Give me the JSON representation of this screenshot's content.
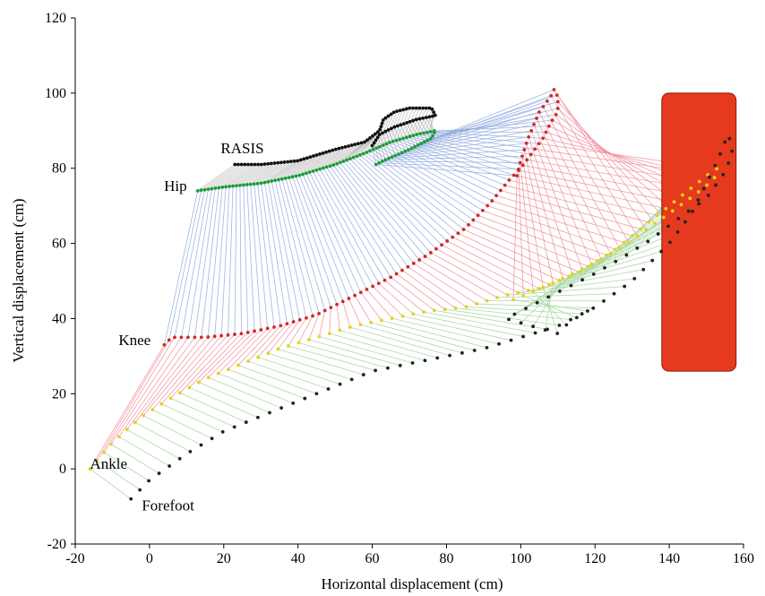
{
  "chart_data": {
    "type": "scatter",
    "title": "",
    "xlabel": "Horizontal displacement (cm)",
    "ylabel": "Vertical displacement (cm)",
    "xlim": [
      -20,
      160
    ],
    "ylim": [
      -20,
      120
    ],
    "xticks": [
      -20,
      0,
      20,
      40,
      60,
      80,
      100,
      120,
      140,
      160
    ],
    "yticks": [
      -20,
      0,
      20,
      40,
      60,
      80,
      100,
      120
    ],
    "grid": false,
    "annotations": [
      {
        "label": "RASIS",
        "x": 25,
        "y": 84
      },
      {
        "label": "Hip",
        "x": 7,
        "y": 74
      },
      {
        "label": "Knee",
        "x": -4,
        "y": 33
      },
      {
        "label": "Ankle",
        "x": -11,
        "y": 0
      },
      {
        "label": "Forefoot",
        "x": 5,
        "y": -11
      }
    ],
    "obstacle": {
      "x0": 138,
      "x1": 158,
      "y0": 26,
      "y1": 100,
      "color": "#e53a1e"
    },
    "series": [
      {
        "name": "RASIS",
        "color": "#111111",
        "points": [
          [
            23,
            81
          ],
          [
            30,
            81
          ],
          [
            40,
            82
          ],
          [
            50,
            85
          ],
          [
            58,
            87
          ],
          [
            62,
            90
          ],
          [
            63,
            93
          ],
          [
            66,
            95
          ],
          [
            70,
            96
          ],
          [
            76,
            96
          ],
          [
            77,
            94
          ],
          [
            72,
            93
          ],
          [
            66,
            91
          ],
          [
            62,
            89
          ],
          [
            60,
            86
          ]
        ]
      },
      {
        "name": "Hip",
        "color": "#1e9b3c",
        "points": [
          [
            13,
            74
          ],
          [
            20,
            75
          ],
          [
            30,
            76
          ],
          [
            40,
            78
          ],
          [
            50,
            81
          ],
          [
            58,
            84
          ],
          [
            65,
            87
          ],
          [
            72,
            89
          ],
          [
            77,
            90
          ],
          [
            76,
            88
          ],
          [
            70,
            85
          ],
          [
            63,
            82
          ],
          [
            61,
            81
          ]
        ]
      },
      {
        "name": "Knee",
        "color": "#d62728",
        "points": [
          [
            4,
            33
          ],
          [
            6,
            35
          ],
          [
            15,
            35
          ],
          [
            25,
            36
          ],
          [
            35,
            38
          ],
          [
            45,
            41
          ],
          [
            55,
            46
          ],
          [
            65,
            51
          ],
          [
            75,
            57
          ],
          [
            85,
            64
          ],
          [
            92,
            71
          ],
          [
            97,
            77
          ],
          [
            100,
            80
          ],
          [
            103,
            84
          ],
          [
            106,
            88
          ],
          [
            108,
            92
          ],
          [
            110,
            95
          ],
          [
            110,
            99
          ],
          [
            109,
            101
          ],
          [
            108,
            99
          ],
          [
            105,
            95
          ],
          [
            102,
            88
          ],
          [
            100,
            82
          ],
          [
            99,
            78
          ]
        ]
      },
      {
        "name": "Ankle",
        "color": "#e6d21f",
        "points": [
          [
            -16,
            0
          ],
          [
            -10,
            7
          ],
          [
            -2,
            14
          ],
          [
            6,
            19
          ],
          [
            15,
            24
          ],
          [
            25,
            28
          ],
          [
            35,
            32
          ],
          [
            45,
            35
          ],
          [
            55,
            38
          ],
          [
            65,
            40
          ],
          [
            75,
            42
          ],
          [
            85,
            43
          ],
          [
            95,
            46
          ],
          [
            105,
            48
          ],
          [
            115,
            52
          ],
          [
            125,
            58
          ],
          [
            135,
            66
          ],
          [
            145,
            74
          ],
          [
            150,
            78
          ],
          [
            153,
            80
          ],
          [
            152,
            77
          ],
          [
            147,
            73
          ],
          [
            140,
            68
          ],
          [
            133,
            63
          ],
          [
            126,
            58
          ],
          [
            118,
            54
          ],
          [
            110,
            50
          ],
          [
            103,
            47
          ],
          [
            98,
            45
          ]
        ]
      },
      {
        "name": "Forefoot",
        "color": "#222222",
        "points": [
          [
            -5,
            -8
          ],
          [
            0,
            -3
          ],
          [
            10,
            4
          ],
          [
            20,
            10
          ],
          [
            30,
            14
          ],
          [
            40,
            18
          ],
          [
            50,
            22
          ],
          [
            60,
            26
          ],
          [
            70,
            28
          ],
          [
            80,
            30
          ],
          [
            90,
            32
          ],
          [
            100,
            35
          ],
          [
            110,
            38
          ],
          [
            120,
            43
          ],
          [
            130,
            50
          ],
          [
            140,
            60
          ],
          [
            146,
            68
          ],
          [
            150,
            76
          ],
          [
            153,
            82
          ],
          [
            155,
            87
          ],
          [
            156,
            89
          ],
          [
            157,
            84
          ],
          [
            155,
            79
          ],
          [
            150,
            72
          ],
          [
            143,
            67
          ],
          [
            135,
            61
          ],
          [
            127,
            56
          ],
          [
            120,
            52
          ],
          [
            112,
            48
          ],
          [
            104,
            44
          ],
          [
            96,
            40
          ],
          [
            110,
            36
          ],
          [
            113,
            39
          ],
          [
            118,
            42
          ]
        ]
      }
    ]
  }
}
